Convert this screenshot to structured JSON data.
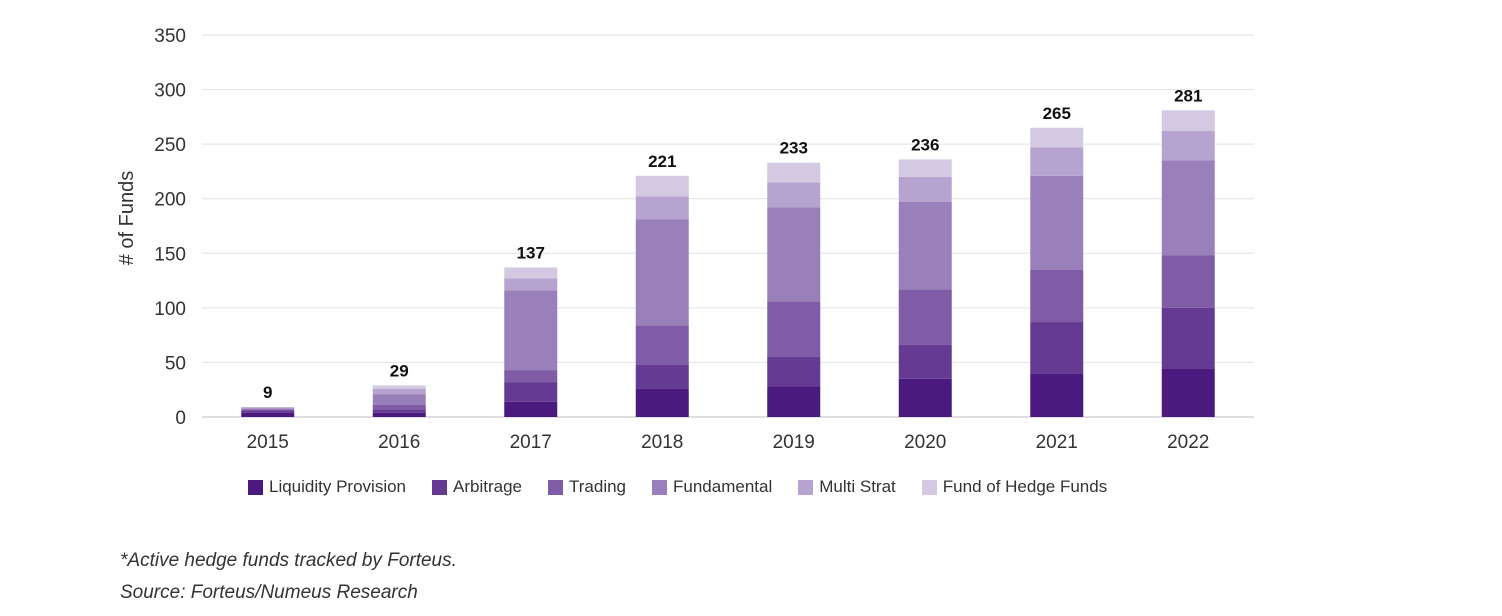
{
  "chart_data": {
    "type": "bar",
    "stacked": true,
    "ylabel": "# of Funds",
    "ylim": [
      0,
      350
    ],
    "yticks": [
      0,
      50,
      100,
      150,
      200,
      250,
      300,
      350
    ],
    "categories": [
      "2015",
      "2016",
      "2017",
      "2018",
      "2019",
      "2020",
      "2021",
      "2022"
    ],
    "series": [
      {
        "name": "Liquidity Provision",
        "color": "#4b1a7f",
        "values": [
          4,
          4,
          14,
          26,
          28,
          35,
          40,
          44
        ]
      },
      {
        "name": "Arbitrage",
        "color": "#653a93",
        "values": [
          2,
          3,
          18,
          22,
          27,
          31,
          47,
          56
        ]
      },
      {
        "name": "Trading",
        "color": "#7f5ca5",
        "values": [
          1,
          4,
          11,
          36,
          51,
          51,
          48,
          48
        ]
      },
      {
        "name": "Fundamental",
        "color": "#9a80bb",
        "values": [
          1,
          10,
          73,
          97,
          86,
          80,
          86,
          87
        ]
      },
      {
        "name": "Multi Strat",
        "color": "#b6a3cf",
        "values": [
          1,
          5,
          11,
          21,
          23,
          23,
          26,
          27
        ]
      },
      {
        "name": "Fund of Hedge Funds",
        "color": "#d3c9e3",
        "values": [
          0,
          3,
          10,
          19,
          18,
          16,
          18,
          19
        ]
      }
    ],
    "totals": [
      9,
      29,
      137,
      221,
      233,
      236,
      265,
      281
    ],
    "grid": true,
    "legend_position": "bottom"
  },
  "notes": {
    "line1": "*Active hedge funds tracked by Forteus.",
    "line2": "Source: Forteus/Numeus Research"
  }
}
